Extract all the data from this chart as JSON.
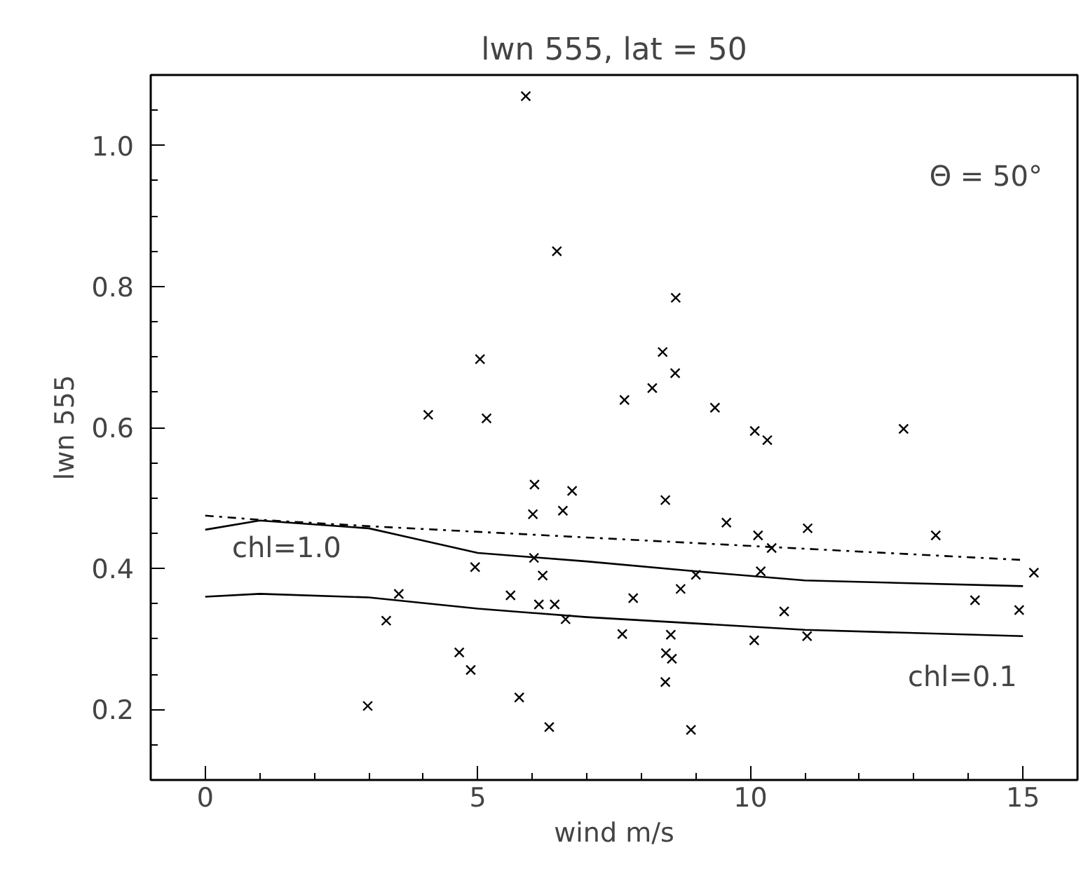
{
  "chart_data": {
    "type": "scatter",
    "title": "lwn 555, lat = 50",
    "xlabel": "wind m/s",
    "ylabel": "lwn 555",
    "xlim": [
      -1,
      16
    ],
    "ylim": [
      0.1,
      1.1
    ],
    "xticks": [
      0,
      {
        "value": 1,
        "label": null
      },
      {
        "value": 2,
        "label": null
      },
      {
        "value": 3,
        "label": null
      },
      {
        "value": 4,
        "label": null
      },
      5,
      {
        "value": 6,
        "label": null
      },
      {
        "value": 7,
        "label": null
      },
      {
        "value": 8,
        "label": null
      },
      {
        "value": 9,
        "label": null
      },
      10,
      {
        "value": 11,
        "label": null
      },
      {
        "value": 12,
        "label": null
      },
      {
        "value": 13,
        "label": null
      },
      {
        "value": 14,
        "label": null
      },
      15
    ],
    "yticks": [
      {
        "value": 0.15,
        "label": null
      },
      {
        "value": 0.2,
        "label": "0.2"
      },
      {
        "value": 0.25,
        "label": null
      },
      {
        "value": 0.3,
        "label": null
      },
      {
        "value": 0.35,
        "label": null
      },
      {
        "value": 0.4,
        "label": "0.4"
      },
      {
        "value": 0.45,
        "label": null
      },
      {
        "value": 0.5,
        "label": null
      },
      {
        "value": 0.55,
        "label": null
      },
      {
        "value": 0.6,
        "label": "0.6"
      },
      {
        "value": 0.65,
        "label": null
      },
      {
        "value": 0.7,
        "label": null
      },
      {
        "value": 0.75,
        "label": null
      },
      {
        "value": 0.8,
        "label": "0.8"
      },
      {
        "value": 0.85,
        "label": null
      },
      {
        "value": 0.9,
        "label": null
      },
      {
        "value": 0.95,
        "label": null
      },
      {
        "value": 1.0,
        "label": "1.0"
      },
      {
        "value": 1.05,
        "label": null
      }
    ],
    "grid": false,
    "series": [
      {
        "marker": "cross",
        "color": "#000000",
        "x": [
          5.88,
          6.45,
          5.04,
          4.09,
          5.16,
          8.63,
          8.39,
          8.62,
          8.2,
          7.69,
          9.35,
          10.08,
          10.31,
          12.81,
          6.04,
          6.73,
          6.01,
          6.56,
          4.95,
          6.03,
          6.19,
          3.55,
          5.6,
          6.12,
          6.41,
          3.32,
          6.61,
          4.66,
          4.87,
          2.98,
          5.76,
          6.31,
          8.44,
          9.56,
          10.14,
          10.39,
          11.05,
          13.4,
          15.2,
          9.0,
          10.19,
          8.72,
          7.85,
          14.12,
          14.93,
          10.62,
          7.65,
          8.54,
          10.07,
          11.04,
          8.45,
          8.56,
          8.44,
          8.91
        ],
        "values": [
          1.07,
          0.85,
          0.697,
          0.618,
          0.613,
          0.784,
          0.707,
          0.677,
          0.656,
          0.639,
          0.628,
          0.595,
          0.582,
          0.598,
          0.519,
          0.51,
          0.477,
          0.482,
          0.402,
          0.415,
          0.39,
          0.364,
          0.362,
          0.349,
          0.349,
          0.326,
          0.328,
          0.281,
          0.256,
          0.205,
          0.217,
          0.175,
          0.497,
          0.465,
          0.447,
          0.429,
          0.457,
          0.447,
          0.394,
          0.391,
          0.396,
          0.371,
          0.358,
          0.355,
          0.341,
          0.339,
          0.307,
          0.306,
          0.298,
          0.304,
          0.28,
          0.272,
          0.239,
          0.171
        ]
      },
      {
        "type": "line",
        "line_style": "dashdot",
        "color": "#000000",
        "x": [
          0,
          1,
          3,
          5,
          7,
          10,
          11,
          15
        ],
        "values": [
          0.475,
          0.469,
          0.46,
          0.452,
          0.444,
          0.432,
          0.428,
          0.412
        ]
      },
      {
        "type": "line",
        "line_style": "solid",
        "color": "#000000",
        "x": [
          0,
          1,
          3,
          5,
          7,
          9,
          11,
          15
        ],
        "values": [
          0.455,
          0.468,
          0.457,
          0.422,
          0.41,
          0.396,
          0.383,
          0.375
        ]
      },
      {
        "type": "line",
        "line_style": "solid",
        "color": "#000000",
        "x": [
          0,
          1,
          3,
          5,
          7,
          11,
          15
        ],
        "values": [
          0.36,
          0.364,
          0.359,
          0.343,
          0.331,
          0.313,
          0.304
        ]
      }
    ],
    "annotations": [
      "Θ = 50°",
      "chl=1.0",
      "chl=0.1"
    ]
  }
}
